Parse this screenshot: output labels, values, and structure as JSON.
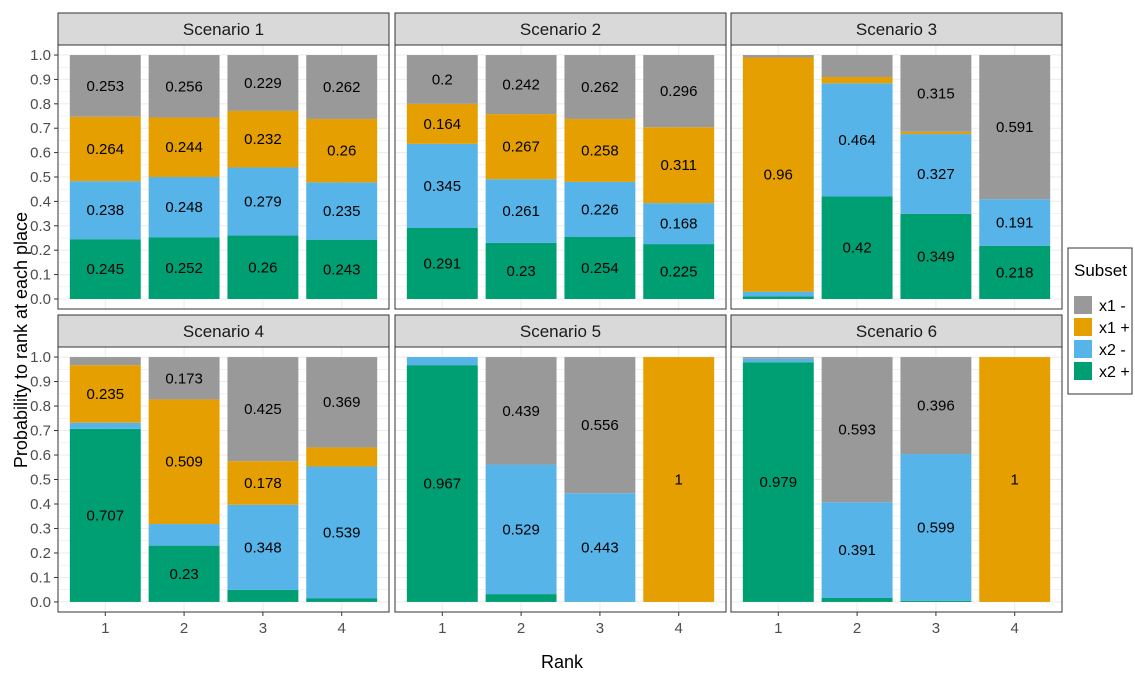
{
  "chart_data": {
    "type": "bar",
    "stacked": true,
    "xlabel": "Rank",
    "ylabel": "Probability to rank at each place",
    "ylim": [
      0,
      1
    ],
    "yticks": [
      "0.0",
      "0.1",
      "0.2",
      "0.3",
      "0.4",
      "0.5",
      "0.6",
      "0.7",
      "0.8",
      "0.9",
      "1.0"
    ],
    "categories": [
      "1",
      "2",
      "3",
      "4"
    ],
    "grid": true,
    "legend": {
      "title": "Subset",
      "position": "right",
      "entries": [
        {
          "label": "x1 -",
          "color": "#999999"
        },
        {
          "label": "x1 +",
          "color": "#E69F00"
        },
        {
          "label": "x2 -",
          "color": "#56B4E9"
        },
        {
          "label": "x2 +",
          "color": "#009E73"
        }
      ]
    },
    "stack_order_bottom_to_top": [
      "x2 +",
      "x2 -",
      "x1 +",
      "x1 -"
    ],
    "panels": [
      {
        "title": "Scenario 1",
        "bars": [
          {
            "x2p": 0.245,
            "x2m": 0.238,
            "x1p": 0.264,
            "x1m": 0.253,
            "labels": [
              "0.245",
              "0.238",
              "0.264",
              "0.253"
            ]
          },
          {
            "x2p": 0.252,
            "x2m": 0.248,
            "x1p": 0.244,
            "x1m": 0.256,
            "labels": [
              "0.252",
              "0.248",
              "0.244",
              "0.256"
            ]
          },
          {
            "x2p": 0.26,
            "x2m": 0.279,
            "x1p": 0.232,
            "x1m": 0.229,
            "labels": [
              "0.26",
              "0.279",
              "0.232",
              "0.229"
            ]
          },
          {
            "x2p": 0.243,
            "x2m": 0.235,
            "x1p": 0.26,
            "x1m": 0.262,
            "labels": [
              "0.243",
              "0.235",
              "0.26",
              "0.262"
            ]
          }
        ]
      },
      {
        "title": "Scenario 2",
        "bars": [
          {
            "x2p": 0.291,
            "x2m": 0.345,
            "x1p": 0.164,
            "x1m": 0.2,
            "labels": [
              "0.291",
              "0.345",
              "0.164",
              "0.2"
            ]
          },
          {
            "x2p": 0.23,
            "x2m": 0.261,
            "x1p": 0.267,
            "x1m": 0.242,
            "labels": [
              "0.23",
              "0.261",
              "0.267",
              "0.242"
            ]
          },
          {
            "x2p": 0.254,
            "x2m": 0.226,
            "x1p": 0.258,
            "x1m": 0.262,
            "labels": [
              "0.254",
              "0.226",
              "0.258",
              "0.262"
            ]
          },
          {
            "x2p": 0.225,
            "x2m": 0.168,
            "x1p": 0.311,
            "x1m": 0.296,
            "labels": [
              "0.225",
              "0.168",
              "0.311",
              "0.296"
            ]
          }
        ]
      },
      {
        "title": "Scenario 3",
        "bars": [
          {
            "x2p": 0.01,
            "x2m": 0.02,
            "x1p": 0.96,
            "x1m": 0.01,
            "labels": [
              "",
              "",
              "0.96",
              ""
            ]
          },
          {
            "x2p": 0.42,
            "x2m": 0.464,
            "x1p": 0.026,
            "x1m": 0.09,
            "labels": [
              "0.42",
              "0.464",
              "",
              ""
            ]
          },
          {
            "x2p": 0.349,
            "x2m": 0.327,
            "x1p": 0.009,
            "x1m": 0.315,
            "labels": [
              "0.349",
              "0.327",
              "",
              "0.315"
            ]
          },
          {
            "x2p": 0.218,
            "x2m": 0.191,
            "x1p": 0.0,
            "x1m": 0.591,
            "labels": [
              "0.218",
              "0.191",
              "",
              "0.591"
            ]
          }
        ]
      },
      {
        "title": "Scenario 4",
        "bars": [
          {
            "x2p": 0.707,
            "x2m": 0.025,
            "x1p": 0.235,
            "x1m": 0.033,
            "labels": [
              "0.707",
              "",
              "0.235",
              ""
            ]
          },
          {
            "x2p": 0.23,
            "x2m": 0.088,
            "x1p": 0.509,
            "x1m": 0.173,
            "labels": [
              "0.23",
              "",
              "0.509",
              "0.173"
            ]
          },
          {
            "x2p": 0.049,
            "x2m": 0.348,
            "x1p": 0.178,
            "x1m": 0.425,
            "labels": [
              "",
              "0.348",
              "0.178",
              "0.425"
            ]
          },
          {
            "x2p": 0.014,
            "x2m": 0.539,
            "x1p": 0.078,
            "x1m": 0.369,
            "labels": [
              "",
              "0.539",
              "",
              "0.369"
            ]
          }
        ]
      },
      {
        "title": "Scenario 5",
        "bars": [
          {
            "x2p": 0.967,
            "x2m": 0.033,
            "x1p": 0.0,
            "x1m": 0.0,
            "labels": [
              "0.967",
              "",
              "",
              ""
            ]
          },
          {
            "x2p": 0.032,
            "x2m": 0.529,
            "x1p": 0.0,
            "x1m": 0.439,
            "labels": [
              "",
              "0.529",
              "",
              "0.439"
            ]
          },
          {
            "x2p": 0.001,
            "x2m": 0.443,
            "x1p": 0.0,
            "x1m": 0.556,
            "labels": [
              "",
              "0.443",
              "",
              "0.556"
            ]
          },
          {
            "x2p": 0.0,
            "x2m": 0.0,
            "x1p": 1.0,
            "x1m": 0.0,
            "labels": [
              "",
              "",
              "1",
              ""
            ]
          }
        ]
      },
      {
        "title": "Scenario 6",
        "bars": [
          {
            "x2p": 0.979,
            "x2m": 0.014,
            "x1p": 0.0,
            "x1m": 0.007,
            "labels": [
              "0.979",
              "",
              "",
              ""
            ]
          },
          {
            "x2p": 0.016,
            "x2m": 0.391,
            "x1p": 0.0,
            "x1m": 0.593,
            "labels": [
              "",
              "0.391",
              "",
              "0.593"
            ]
          },
          {
            "x2p": 0.005,
            "x2m": 0.599,
            "x1p": 0.0,
            "x1m": 0.396,
            "labels": [
              "",
              "0.599",
              "",
              "0.396"
            ]
          },
          {
            "x2p": 0.0,
            "x2m": 0.0,
            "x1p": 1.0,
            "x1m": 0.0,
            "labels": [
              "",
              "",
              "1",
              ""
            ]
          }
        ]
      }
    ]
  }
}
